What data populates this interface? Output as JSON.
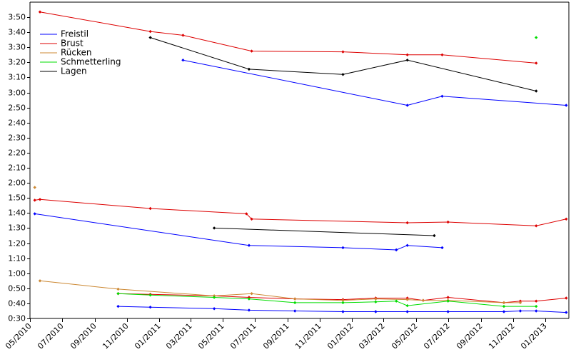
{
  "chart_data": {
    "type": "line",
    "title": "",
    "xlabel": "",
    "ylabel": "",
    "xlim": [
      "2010-05-01",
      "2013-02-15"
    ],
    "ylim": [
      "0:30",
      "3:60"
    ],
    "x_ticks": [
      "05/2010",
      "07/2010",
      "09/2010",
      "11/2010",
      "01/2011",
      "03/2011",
      "05/2011",
      "07/2011",
      "09/2011",
      "11/2011",
      "01/2012",
      "03/2012",
      "05/2012",
      "07/2012",
      "09/2012",
      "11/2012",
      "01/2013"
    ],
    "y_ticks": [
      "0:30",
      "0:40",
      "0:50",
      "1:00",
      "1:10",
      "1:20",
      "1:30",
      "1:40",
      "1:50",
      "2:00",
      "2:10",
      "2:20",
      "2:30",
      "2:40",
      "2:50",
      "3:00",
      "3:10",
      "3:20",
      "3:30",
      "3:40",
      "3:50"
    ],
    "legend_position": "top-left",
    "grid": false,
    "series": [
      {
        "name": "Freistil",
        "color": "#0000ff",
        "lines": [
          [
            [
              "2010-10-15",
              "0:38"
            ],
            [
              "2010-12-15",
              "0:37.5"
            ],
            [
              "2011-04-15",
              "0:36.5"
            ],
            [
              "2011-06-20",
              "0:35.5"
            ],
            [
              "2011-09-15",
              "0:35"
            ],
            [
              "2011-12-15",
              "0:34.5"
            ],
            [
              "2012-02-15",
              "0:34.5"
            ],
            [
              "2012-04-15",
              "0:34.5"
            ],
            [
              "2012-07-01",
              "0:34.5"
            ],
            [
              "2012-10-15",
              "0:34.5"
            ],
            [
              "2012-11-15",
              "0:35"
            ],
            [
              "2012-12-15",
              "0:35"
            ],
            [
              "2013-02-10",
              "0:34"
            ]
          ],
          [
            [
              "2010-05-10",
              "1:39.5"
            ],
            [
              "2011-06-20",
              "1:18.5"
            ],
            [
              "2011-12-15",
              "1:17"
            ],
            [
              "2012-03-25",
              "1:15.5"
            ],
            [
              "2012-04-15",
              "1:18.5"
            ],
            [
              "2012-06-20",
              "1:17"
            ]
          ],
          [
            [
              "2011-02-15",
              "3:21.5"
            ],
            [
              "2012-04-15",
              "2:51.5"
            ],
            [
              "2012-06-20",
              "2:57.5"
            ],
            [
              "2013-02-10",
              "2:51.5"
            ]
          ]
        ]
      },
      {
        "name": "Brust",
        "color": "#dd0000",
        "lines": [
          [
            [
              "2010-10-15",
              "0:46.5"
            ],
            [
              "2010-12-15",
              "0:46"
            ],
            [
              "2011-04-15",
              "0:45"
            ],
            [
              "2011-06-20",
              "0:44"
            ],
            [
              "2011-09-15",
              "0:43"
            ],
            [
              "2011-12-15",
              "0:42.5"
            ],
            [
              "2012-02-15",
              "0:43.5"
            ],
            [
              "2012-04-15",
              "0:43.5"
            ],
            [
              "2012-05-15",
              "0:42"
            ],
            [
              "2012-07-01",
              "0:44"
            ],
            [
              "2012-10-15",
              "0:40.5"
            ],
            [
              "2012-11-15",
              "0:41.5"
            ],
            [
              "2012-12-15",
              "0:41.5"
            ],
            [
              "2013-02-10",
              "0:43.5"
            ]
          ],
          [
            [
              "2010-05-10",
              "1:48.5"
            ],
            [
              "2010-05-20",
              "1:49"
            ],
            [
              "2010-12-15",
              "1:43"
            ],
            [
              "2011-06-15",
              "1:39.5"
            ],
            [
              "2011-06-25",
              "1:36"
            ],
            [
              "2012-04-15",
              "1:33.5"
            ],
            [
              "2012-07-01",
              "1:34"
            ],
            [
              "2012-12-15",
              "1:31.5"
            ],
            [
              "2013-02-10",
              "1:36"
            ]
          ],
          [
            [
              "2010-05-20",
              "3:53.5"
            ],
            [
              "2010-12-15",
              "3:40.5"
            ],
            [
              "2011-02-15",
              "3:38"
            ],
            [
              "2011-06-25",
              "3:27.5"
            ],
            [
              "2011-12-15",
              "3:27"
            ],
            [
              "2012-04-15",
              "3:25"
            ],
            [
              "2012-06-20",
              "3:25"
            ],
            [
              "2012-12-15",
              "3:19.5"
            ]
          ]
        ]
      },
      {
        "name": "Rücken",
        "color": "#cc8833",
        "lines": [
          [
            [
              "2010-05-20",
              "0:55"
            ],
            [
              "2010-10-15",
              "0:49.5"
            ],
            [
              "2011-04-15",
              "0:45"
            ],
            [
              "2011-06-25",
              "0:46.5"
            ],
            [
              "2011-09-15",
              "0:43"
            ],
            [
              "2011-12-15",
              "0:42"
            ],
            [
              "2012-02-15",
              "0:43"
            ],
            [
              "2012-04-15",
              "0:42.5"
            ],
            [
              "2012-05-15",
              "0:42"
            ],
            [
              "2012-07-01",
              "0:42"
            ],
            [
              "2012-10-15",
              "0:40.5"
            ],
            [
              "2012-11-15",
              "0:40.5"
            ]
          ],
          [
            [
              "2010-05-10",
              "1:57"
            ]
          ]
        ]
      },
      {
        "name": "Schmetterling",
        "color": "#00dd00",
        "lines": [
          [
            [
              "2010-10-15",
              "0:46.5"
            ],
            [
              "2010-12-15",
              "0:45.5"
            ],
            [
              "2011-04-15",
              "0:44"
            ],
            [
              "2011-06-20",
              "0:43"
            ],
            [
              "2011-09-15",
              "0:40.5"
            ],
            [
              "2011-12-15",
              "0:40.5"
            ],
            [
              "2012-02-15",
              "0:41"
            ],
            [
              "2012-03-25",
              "0:41.5"
            ],
            [
              "2012-04-15",
              "0:38.5"
            ],
            [
              "2012-07-01",
              "0:41.5"
            ],
            [
              "2012-10-15",
              "0:38"
            ],
            [
              "2012-12-15",
              "0:38"
            ]
          ],
          [
            [
              "2012-12-15",
              "3:36.5"
            ]
          ]
        ]
      },
      {
        "name": "Lagen",
        "color": "#000000",
        "lines": [
          [
            [
              "2011-04-15",
              "1:30"
            ],
            [
              "2012-06-05",
              "1:25"
            ]
          ],
          [
            [
              "2010-12-15",
              "3:36.5"
            ],
            [
              "2011-06-20",
              "3:15.5"
            ],
            [
              "2011-12-15",
              "3:12"
            ],
            [
              "2012-04-15",
              "3:21.5"
            ],
            [
              "2012-12-15",
              "3:01"
            ]
          ]
        ]
      }
    ]
  }
}
